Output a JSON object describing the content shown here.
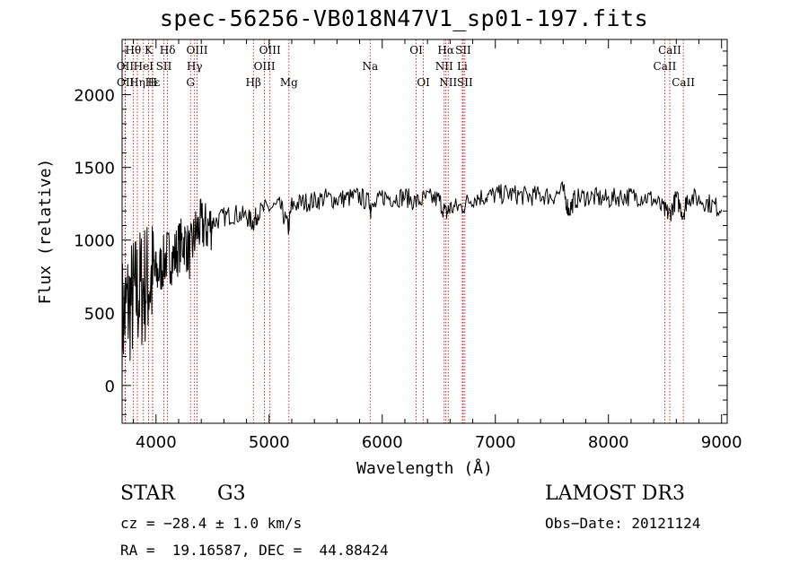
{
  "chart_data": {
    "type": "line",
    "title": "spec-56256-VB018N47V1_sp01-197.fits",
    "xlabel": "Wavelength (Å)",
    "ylabel": "Flux (relative)",
    "xlim": [
      3700,
      9050
    ],
    "ylim": [
      -260,
      2380
    ],
    "xticks": [
      4000,
      5000,
      6000,
      7000,
      8000,
      9000
    ],
    "xtick_labels": [
      "4000",
      "5000",
      "6000",
      "7000",
      "8000",
      "9000"
    ],
    "yticks": [
      0,
      500,
      1000,
      1500,
      2000
    ],
    "ytick_labels": [
      "0",
      "500",
      "1000",
      "1500",
      "2000"
    ],
    "grid": false,
    "series": [
      {
        "name": "flux",
        "color": "#000000",
        "x": [
          3700,
          3750,
          3800,
          3850,
          3900,
          3950,
          4000,
          4050,
          4100,
          4150,
          4200,
          4250,
          4300,
          4350,
          4400,
          4450,
          4500,
          4600,
          4700,
          4800,
          4860,
          4900,
          5000,
          5100,
          5170,
          5200,
          5300,
          5400,
          5500,
          5600,
          5700,
          5800,
          5893,
          5900,
          6000,
          6100,
          6200,
          6300,
          6400,
          6500,
          6563,
          6600,
          6700,
          6800,
          6900,
          7000,
          7100,
          7200,
          7300,
          7400,
          7500,
          7600,
          7650,
          7700,
          7800,
          7900,
          8000,
          8100,
          8200,
          8300,
          8400,
          8498,
          8542,
          8600,
          8662,
          8700,
          8800,
          8900,
          9000
        ],
        "y": [
          450,
          550,
          600,
          650,
          700,
          720,
          750,
          820,
          900,
          870,
          950,
          1000,
          900,
          1050,
          1100,
          1080,
          1120,
          1160,
          1180,
          1160,
          1120,
          1190,
          1220,
          1230,
          1080,
          1240,
          1260,
          1270,
          1290,
          1280,
          1290,
          1300,
          1250,
          1200,
          1300,
          1290,
          1300,
          1260,
          1290,
          1280,
          1180,
          1220,
          1230,
          1290,
          1300,
          1310,
          1320,
          1310,
          1300,
          1310,
          1300,
          1340,
          1200,
          1280,
          1300,
          1290,
          1280,
          1300,
          1300,
          1300,
          1280,
          1200,
          1180,
          1290,
          1180,
          1300,
          1280,
          1250,
          1210
        ]
      }
    ],
    "line_markers": [
      {
        "label": "Hθ",
        "wavelength": 3798,
        "row": 0
      },
      {
        "label": "OII",
        "wavelength": 3727,
        "row": 1
      },
      {
        "label": "OII",
        "wavelength": 3729,
        "row": 2
      },
      {
        "label": "K",
        "wavelength": 3934,
        "row": 0
      },
      {
        "label": "HeI",
        "wavelength": 3889,
        "row": 1
      },
      {
        "label": "Hε",
        "wavelength": 3970,
        "row": 2
      },
      {
        "label": "Hδ",
        "wavelength": 4102,
        "row": 0
      },
      {
        "label": "SII",
        "wavelength": 4069,
        "row": 1
      },
      {
        "label": "Hη",
        "wavelength": 3835,
        "row": 2
      },
      {
        "label": "H",
        "wavelength": 3969,
        "row": 2
      },
      {
        "label": "OIII",
        "wavelength": 4363,
        "row": 0
      },
      {
        "label": "Hγ",
        "wavelength": 4341,
        "row": 1
      },
      {
        "label": "G",
        "wavelength": 4305,
        "row": 2
      },
      {
        "label": "Hβ",
        "wavelength": 4861,
        "row": 2
      },
      {
        "label": "OIII",
        "wavelength": 5007,
        "row": 0
      },
      {
        "label": "OIII",
        "wavelength": 4959,
        "row": 1
      },
      {
        "label": "Mg",
        "wavelength": 5175,
        "row": 2
      },
      {
        "label": "Na",
        "wavelength": 5893,
        "row": 1
      },
      {
        "label": "OI",
        "wavelength": 6300,
        "row": 0
      },
      {
        "label": "OI",
        "wavelength": 6364,
        "row": 2
      },
      {
        "label": "Hα",
        "wavelength": 6563,
        "row": 0
      },
      {
        "label": "SII",
        "wavelength": 6716,
        "row": 0
      },
      {
        "label": "NII",
        "wavelength": 6548,
        "row": 1
      },
      {
        "label": "Li",
        "wavelength": 6708,
        "row": 1
      },
      {
        "label": "NII",
        "wavelength": 6583,
        "row": 2
      },
      {
        "label": "SII",
        "wavelength": 6731,
        "row": 2
      },
      {
        "label": "CaII",
        "wavelength": 8542,
        "row": 0
      },
      {
        "label": "CaII",
        "wavelength": 8498,
        "row": 1
      },
      {
        "label": "CaII",
        "wavelength": 8662,
        "row": 2
      }
    ]
  },
  "info": {
    "class": "STAR",
    "subclass": "G3",
    "survey": "LAMOST DR3",
    "cz": "cz = −28.4 ± 1.0 km/s",
    "obs_date": "Obs−Date: 20121124",
    "coords": "RA =  19.16587, DEC =  44.88424"
  }
}
